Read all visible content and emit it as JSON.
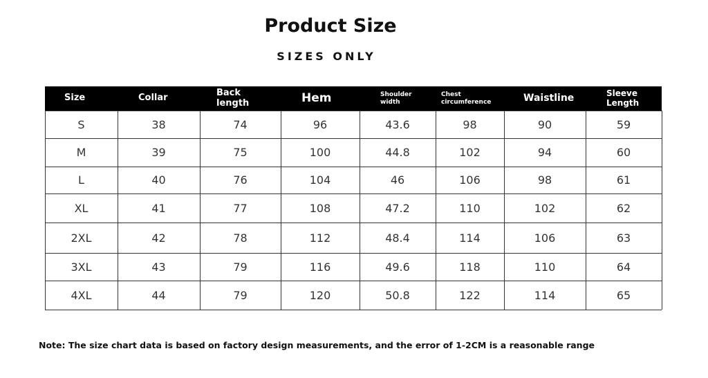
{
  "header": {
    "title": "Product Size",
    "subtitle": "SIZES ONLY"
  },
  "table": {
    "columns": [
      "Size",
      "Collar",
      "Back length",
      "Hem",
      "Shoulder width",
      "Chest circumference",
      "Waistline",
      "Sleeve Length"
    ],
    "rows": [
      [
        "S",
        38,
        74,
        96,
        43.6,
        98,
        90,
        59
      ],
      [
        "M",
        39,
        75,
        100,
        44.8,
        102,
        94,
        60
      ],
      [
        "L",
        40,
        76,
        104,
        46,
        106,
        98,
        61
      ],
      [
        "XL",
        41,
        77,
        108,
        47.2,
        110,
        102,
        62
      ],
      [
        "2XL",
        42,
        78,
        112,
        48.4,
        114,
        106,
        63
      ],
      [
        "3XL",
        43,
        79,
        116,
        49.6,
        118,
        110,
        64
      ],
      [
        "4XL",
        44,
        79,
        120,
        50.8,
        122,
        114,
        65
      ]
    ]
  },
  "note": "Note: The size chart data is based on factory design measurements, and the error of 1-2CM is a reasonable range"
}
